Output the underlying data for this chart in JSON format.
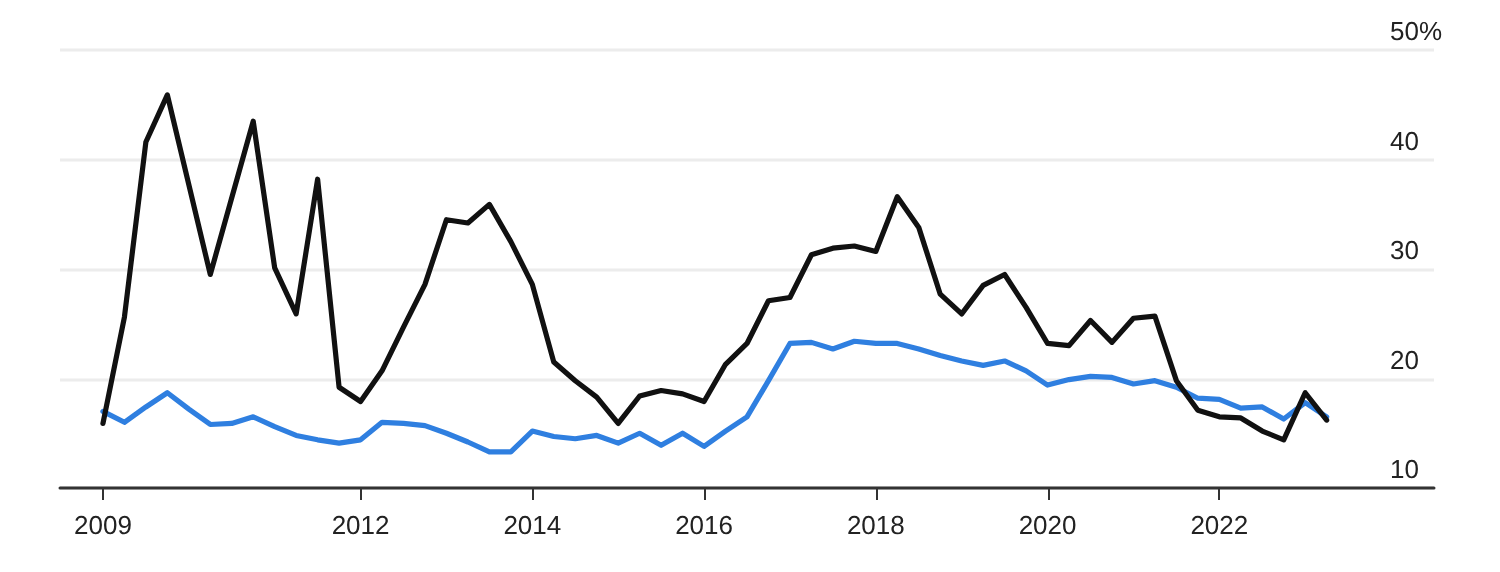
{
  "chart_data": {
    "type": "line",
    "x": [
      2009,
      2009.25,
      2009.5,
      2009.75,
      2010,
      2010.25,
      2010.5,
      2010.75,
      2011,
      2011.25,
      2011.5,
      2011.75,
      2012,
      2012.25,
      2012.5,
      2012.75,
      2013,
      2013.25,
      2013.5,
      2013.75,
      2014,
      2014.25,
      2014.5,
      2014.75,
      2015,
      2015.25,
      2015.5,
      2015.75,
      2016,
      2016.25,
      2016.5,
      2016.75,
      2017,
      2017.25,
      2017.5,
      2017.75,
      2018,
      2018.25,
      2018.5,
      2018.75,
      2019,
      2019.25,
      2019.5,
      2019.75,
      2020,
      2020.25,
      2020.5,
      2020.75,
      2021,
      2021.25,
      2021.5,
      2021.75,
      2022,
      2022.25,
      2022.5,
      2022.75,
      2023,
      2023.25
    ],
    "series": [
      {
        "color": "#111111",
        "values": [
          15.9,
          25.6,
          41.6,
          45.9,
          37.7,
          29.5,
          36.5,
          43.5,
          30.1,
          25.9,
          38.2,
          19.2,
          17.9,
          20.7,
          24.7,
          28.6,
          34.5,
          34.2,
          35.9,
          32.5,
          28.6,
          21.5,
          19.8,
          18.3,
          15.9,
          18.4,
          18.9,
          18.6,
          17.9,
          21.3,
          23.2,
          27.1,
          27.4,
          31.3,
          31.9,
          32.1,
          31.6,
          36.6,
          33.8,
          27.7,
          25.9,
          28.5,
          29.5,
          26.5,
          23.2,
          23.0,
          25.3,
          23.3,
          25.5,
          25.7,
          19.8,
          17.1,
          16.5,
          16.4,
          15.2,
          14.4,
          18.7,
          16.2
        ]
      },
      {
        "color": "#2f7fe0",
        "values": [
          17.0,
          16.0,
          17.4,
          18.7,
          17.2,
          15.8,
          15.9,
          16.5,
          15.6,
          14.8,
          14.4,
          14.1,
          14.4,
          16.0,
          15.9,
          15.7,
          15.0,
          14.2,
          13.3,
          13.3,
          15.2,
          14.7,
          14.5,
          14.8,
          14.1,
          15.0,
          13.9,
          15.0,
          13.8,
          15.2,
          16.5,
          19.8,
          23.2,
          23.3,
          22.7,
          23.4,
          23.2,
          23.2,
          22.7,
          22.1,
          21.6,
          21.2,
          21.6,
          20.7,
          19.4,
          19.9,
          20.2,
          20.1,
          19.5,
          19.8,
          19.2,
          18.2,
          18.1,
          17.3,
          17.4,
          16.3,
          17.8,
          16.5
        ]
      }
    ],
    "xlim": [
      2008.5,
      2024.5
    ],
    "xticks": [
      2009,
      2012,
      2014,
      2016,
      2018,
      2020,
      2022
    ],
    "ylim": [
      10,
      50
    ],
    "yticks": [
      10,
      20,
      30,
      40,
      {
        "value": 50,
        "label": "50%"
      }
    ],
    "grid": "y",
    "marker": "none",
    "line_style": "solid"
  }
}
